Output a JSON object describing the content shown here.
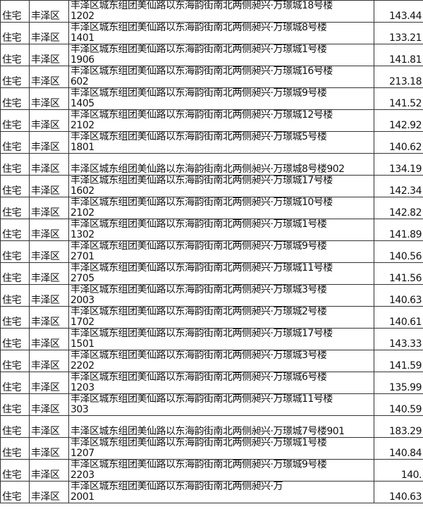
{
  "rows": [
    {
      "type": "住宅",
      "district": "丰泽区",
      "line1": "丰泽区城东组团美仙路以东海韵街南北两侧昶兴·万璟城18号楼",
      "line2": "1202",
      "area": "143.44"
    },
    {
      "type": "住宅",
      "district": "丰泽区",
      "line1": "丰泽区城东组团美仙路以东海韵街南北两侧昶兴·万璟城8号楼",
      "line2": "1401",
      "area": "133.21"
    },
    {
      "type": "住宅",
      "district": "丰泽区",
      "line1": "丰泽区城东组团美仙路以东海韵街南北两侧昶兴·万璟城1号楼",
      "line2": "1906",
      "area": "141.81"
    },
    {
      "type": "住宅",
      "district": "丰泽区",
      "line1": "丰泽区城东组团美仙路以东海韵街南北两侧昶兴·万璟城16号楼",
      "line2": "602",
      "area": "213.18"
    },
    {
      "type": "住宅",
      "district": "丰泽区",
      "line1": "丰泽区城东组团美仙路以东海韵街南北两侧昶兴·万璟城9号楼",
      "line2": "1405",
      "area": "141.52"
    },
    {
      "type": "住宅",
      "district": "丰泽区",
      "line1": "丰泽区城东组团美仙路以东海韵街南北两侧昶兴·万璟城12号楼",
      "line2": "2102",
      "area": "142.92"
    },
    {
      "type": "住宅",
      "district": "丰泽区",
      "line1": "丰泽区城东组团美仙路以东海韵街南北两侧昶兴·万璟城5号楼",
      "line2": "1801",
      "area": "140.62"
    },
    {
      "type": "住宅",
      "district": "丰泽区",
      "line1": "丰泽区城东组团美仙路以东海韵街南北两侧昶兴·万璟城8号楼902",
      "line2": "",
      "area": "134.19"
    },
    {
      "type": "住宅",
      "district": "丰泽区",
      "line1": "丰泽区城东组团美仙路以东海韵街南北两侧昶兴·万璟城17号楼",
      "line2": "1602",
      "area": "142.34"
    },
    {
      "type": "住宅",
      "district": "丰泽区",
      "line1": "丰泽区城东组团美仙路以东海韵街南北两侧昶兴·万璟城10号楼",
      "line2": "2102",
      "area": "142.82"
    },
    {
      "type": "住宅",
      "district": "丰泽区",
      "line1": "丰泽区城东组团美仙路以东海韵街南北两侧昶兴·万璟城1号楼",
      "line2": "1302",
      "area": "141.89"
    },
    {
      "type": "住宅",
      "district": "丰泽区",
      "line1": "丰泽区城东组团美仙路以东海韵街南北两侧昶兴·万璟城9号楼",
      "line2": "2701",
      "area": "140.56"
    },
    {
      "type": "住宅",
      "district": "丰泽区",
      "line1": "丰泽区城东组团美仙路以东海韵街南北两侧昶兴·万璟城11号楼",
      "line2": "2705",
      "area": "141.56"
    },
    {
      "type": "住宅",
      "district": "丰泽区",
      "line1": "丰泽区城东组团美仙路以东海韵街南北两侧昶兴·万璟城3号楼",
      "line2": "2003",
      "area": "140.63"
    },
    {
      "type": "住宅",
      "district": "丰泽区",
      "line1": "丰泽区城东组团美仙路以东海韵街南北两侧昶兴·万璟城2号楼",
      "line2": "1702",
      "area": "140.61"
    },
    {
      "type": "住宅",
      "district": "丰泽区",
      "line1": "丰泽区城东组团美仙路以东海韵街南北两侧昶兴·万璟城17号楼",
      "line2": "1501",
      "area": "143.33"
    },
    {
      "type": "住宅",
      "district": "丰泽区",
      "line1": "丰泽区城东组团美仙路以东海韵街南北两侧昶兴·万璟城3号楼",
      "line2": "2202",
      "area": "141.59"
    },
    {
      "type": "住宅",
      "district": "丰泽区",
      "line1": "丰泽区城东组团美仙路以东海韵街南北两侧昶兴·万璟城6号楼",
      "line2": "1203",
      "area": "135.99"
    },
    {
      "type": "住宅",
      "district": "丰泽区",
      "line1": "丰泽区城东组团美仙路以东海韵街南北两侧昶兴·万璟城11号楼",
      "line2": "303",
      "area": "140.59"
    },
    {
      "type": "住宅",
      "district": "丰泽区",
      "line1": "丰泽区城东组团美仙路以东海韵街南北两侧昶兴·万璟城7号楼901",
      "line2": "",
      "area": "183.29"
    },
    {
      "type": "住宅",
      "district": "丰泽区",
      "line1": "丰泽区城东组团美仙路以东海韵街南北两侧昶兴·万璟城1号楼",
      "line2": "1207",
      "area": "140.84"
    },
    {
      "type": "住宅",
      "district": "丰泽区",
      "line1": "丰泽区城东组团美仙路以东海韵街南北两侧昶兴·万璟城9号楼",
      "line2": "2203",
      "area": "140."
    },
    {
      "type": "住宅",
      "district": "丰泽区",
      "line1": "丰泽区城东组团美仙路以东海韵街南北两侧昶兴·万",
      "line2": "2001",
      "area": "140.63"
    }
  ]
}
